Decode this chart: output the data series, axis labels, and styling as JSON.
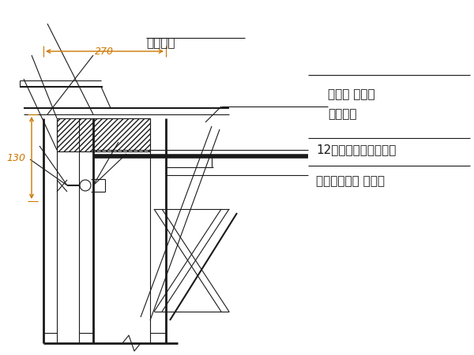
{
  "bg_color": "#ffffff",
  "line_color": "#1a1a1a",
  "dim_color": "#cc7700",
  "text_color": "#1a1a1a",
  "label_130": "130",
  "label_270": "270",
  "label_outer_rod": "外连杆（周转 使用）",
  "label_channel_steel": "12号槽钢（周转使用）",
  "label_nut": "连接螺母",
  "label_nut2": "（周转 使用）",
  "label_anchor": "地脚螺栓",
  "figsize": [
    6.0,
    4.5
  ],
  "dpi": 100
}
